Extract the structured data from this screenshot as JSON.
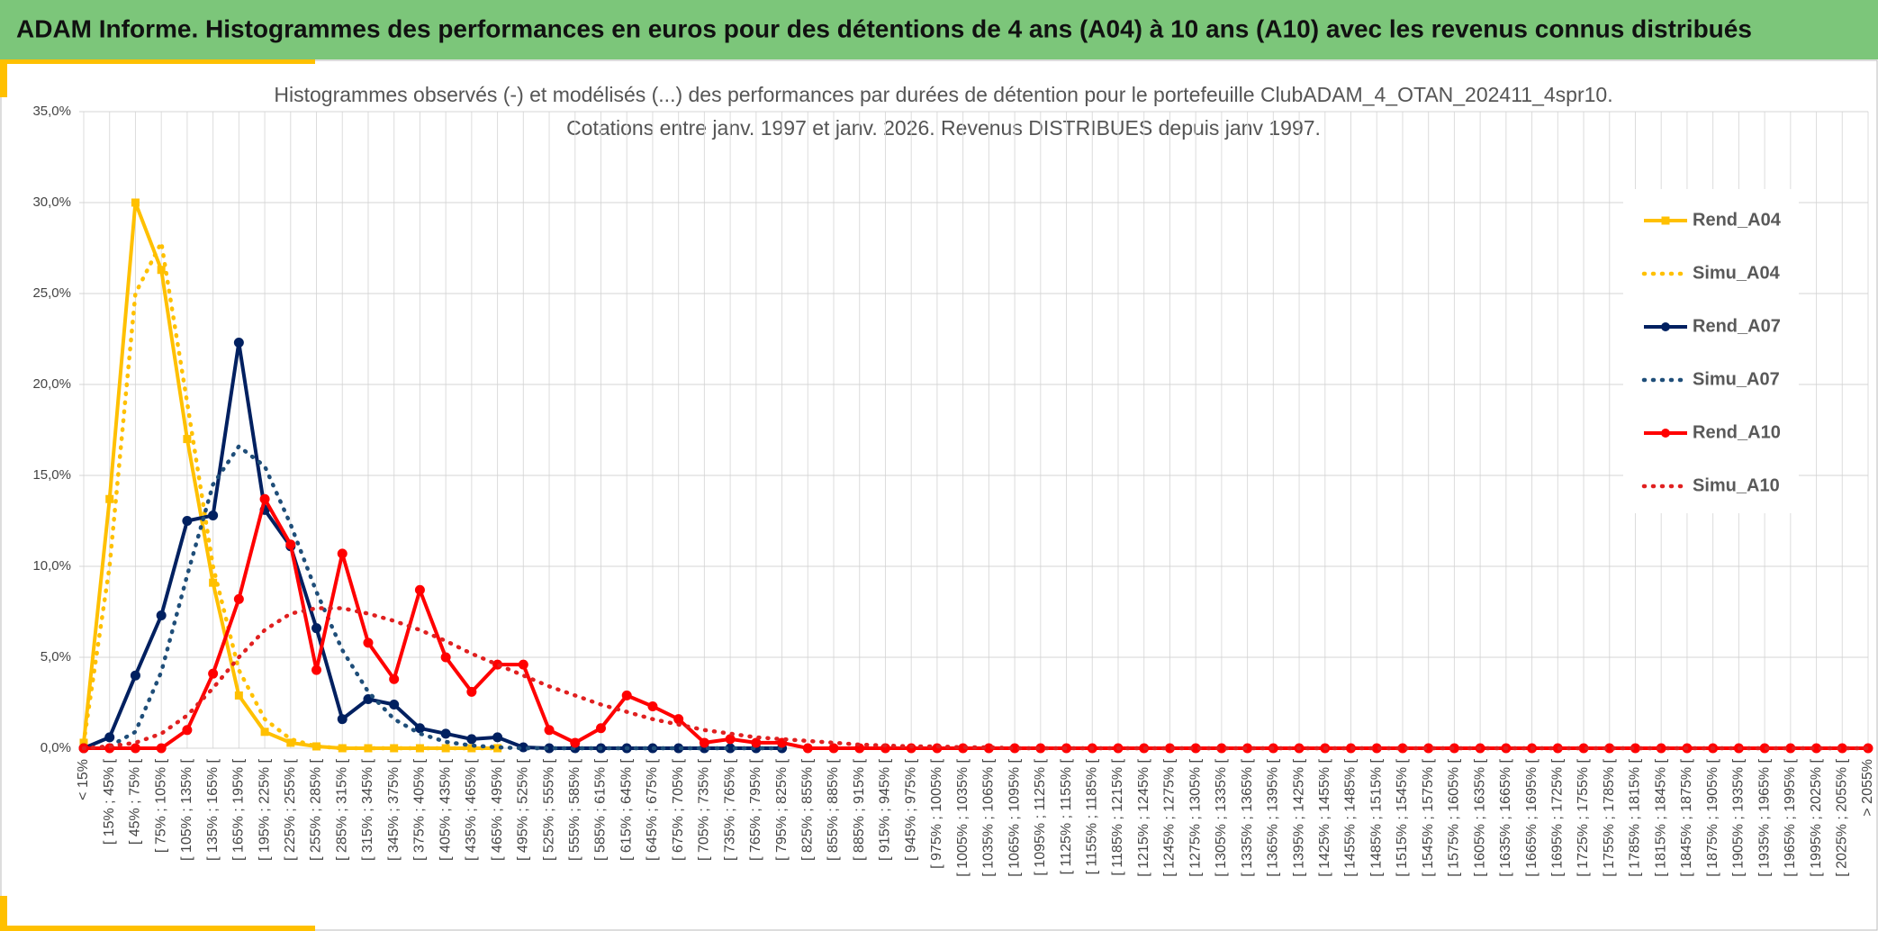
{
  "header": {
    "title": "ADAM Informe. Histogrammes des performances en euros pour des détentions de 4 ans (A04) à 10 ans (A10) avec les revenus connus distribués"
  },
  "chart_data": {
    "type": "line",
    "title": [
      "Histogrammes observés (-) et modélisés (...) des performances par durées de détention pour le portefeuille ClubADAM_4_OTAN_202411_4spr10.",
      "Cotations entre janv. 1997 et janv. 2026. Revenus DISTRIBUES depuis janv 1997."
    ],
    "categories": [
      "< 15%",
      "[ 15% ; 45% [",
      "[ 45% ; 75% [",
      "[ 75% ; 105% [",
      "[ 105% ; 135% [",
      "[ 135% ; 165% [",
      "[ 165% ; 195% [",
      "[ 195% ; 225% [",
      "[ 225% ; 255% [",
      "[ 255% ; 285% [",
      "[ 285% ; 315% [",
      "[ 315% ; 345% [",
      "[ 345% ; 375% [",
      "[ 375% ; 405% [",
      "[ 405% ; 435% [",
      "[ 435% ; 465% [",
      "[ 465% ; 495% [",
      "[ 495% ; 525% [",
      "[ 525% ; 555% [",
      "[ 555% ; 585% [",
      "[ 585% ; 615% [",
      "[ 615% ; 645% [",
      "[ 645% ; 675% [",
      "[ 675% ; 705% [",
      "[ 705% ; 735% [",
      "[ 735% ; 765% [",
      "[ 765% ; 795% [",
      "[ 795% ; 825% [",
      "[ 825% ; 855% [",
      "[ 855% ; 885% [",
      "[ 885% ; 915% [",
      "[ 915% ; 945% [",
      "[ 945% ; 975% [",
      "[ 975% ; 1005% [",
      "[ 1005% ; 1035% [",
      "[ 1035% ; 1065% [",
      "[ 1065% ; 1095% [",
      "[ 1095% ; 1125% [",
      "[ 1125% ; 1155% [",
      "[ 1155% ; 1185% [",
      "[ 1185% ; 1215% [",
      "[ 1215% ; 1245% [",
      "[ 1245% ; 1275% [",
      "[ 1275% ; 1305% [",
      "[ 1305% ; 1335% [",
      "[ 1335% ; 1365% [",
      "[ 1365% ; 1395% [",
      "[ 1395% ; 1425% [",
      "[ 1425% ; 1455% [",
      "[ 1455% ; 1485% [",
      "[ 1485% ; 1515% [",
      "[ 1515% ; 1545% [",
      "[ 1545% ; 1575% [",
      "[ 1575% ; 1605% [",
      "[ 1605% ; 1635% [",
      "[ 1635% ; 1665% [",
      "[ 1665% ; 1695% [",
      "[ 1695% ; 1725% [",
      "[ 1725% ; 1755% [",
      "[ 1755% ; 1785% [",
      "[ 1785% ; 1815% [",
      "[ 1815% ; 1845% [",
      "[ 1845% ; 1875% [",
      "[ 1875% ; 1905% [",
      "[ 1905% ; 1935% [",
      "[ 1935% ; 1965% [",
      "[ 1965% ; 1995% [",
      "[ 1995% ; 2025% [",
      "[ 2025% ; 2055% [",
      "> 2055%"
    ],
    "series": [
      {
        "name": "Rend_A04",
        "color": "#ffc000",
        "style": "solid",
        "marker": "square",
        "values": [
          0.3,
          13.7,
          30.0,
          26.3,
          17.0,
          9.1,
          2.9,
          0.9,
          0.3,
          0.1,
          0,
          0,
          0,
          0,
          0,
          0,
          0,
          null,
          null,
          null,
          null,
          null,
          null,
          null,
          null,
          null,
          null,
          null,
          null,
          null,
          null,
          null,
          null,
          null,
          null,
          null,
          null,
          null,
          null,
          null,
          null,
          null,
          null,
          null,
          null,
          null,
          null,
          null,
          null,
          null,
          null,
          null,
          null,
          null,
          null,
          null,
          null,
          null,
          null,
          null,
          null,
          null,
          null,
          null,
          null,
          null,
          null,
          null,
          null,
          null
        ]
      },
      {
        "name": "Simu_A04",
        "color": "#ffc000",
        "style": "dotted",
        "marker": "none",
        "values": [
          0.3,
          10.0,
          25.0,
          27.8,
          19.0,
          10.0,
          4.3,
          1.6,
          0.5,
          0.1,
          0,
          0,
          0,
          0,
          0,
          0,
          0,
          null,
          null,
          null,
          null,
          null,
          null,
          null,
          null,
          null,
          null,
          null,
          null,
          null,
          null,
          null,
          null,
          null,
          null,
          null,
          null,
          null,
          null,
          null,
          null,
          null,
          null,
          null,
          null,
          null,
          null,
          null,
          null,
          null,
          null,
          null,
          null,
          null,
          null,
          null,
          null,
          null,
          null,
          null,
          null,
          null,
          null,
          null,
          null,
          null,
          null,
          null,
          null,
          null
        ]
      },
      {
        "name": "Rend_A07",
        "color": "#002060",
        "style": "solid",
        "marker": "circle",
        "values": [
          0,
          0.6,
          4.0,
          7.3,
          12.5,
          12.8,
          22.3,
          13.1,
          11.1,
          6.6,
          1.6,
          2.7,
          2.4,
          1.1,
          0.8,
          0.5,
          0.6,
          0.05,
          0,
          0,
          0,
          0,
          0,
          0,
          0,
          0,
          0,
          0,
          null,
          null,
          null,
          null,
          null,
          null,
          null,
          null,
          null,
          null,
          null,
          null,
          null,
          null,
          null,
          null,
          null,
          null,
          null,
          null,
          null,
          null,
          null,
          null,
          null,
          null,
          null,
          null,
          null,
          null,
          null,
          null,
          null,
          null,
          null,
          null,
          null,
          null,
          null,
          null,
          null,
          null
        ]
      },
      {
        "name": "Simu_A07",
        "color": "#1f4e79",
        "style": "dotted",
        "marker": "none",
        "values": [
          0,
          0.1,
          0.9,
          4.2,
          9.5,
          14.5,
          16.6,
          15.5,
          12.3,
          8.6,
          5.4,
          3.1,
          1.6,
          0.8,
          0.35,
          0.15,
          0.05,
          0,
          0,
          0,
          0,
          0,
          0,
          0,
          0,
          0,
          0,
          0,
          null,
          null,
          null,
          null,
          null,
          null,
          null,
          null,
          null,
          null,
          null,
          null,
          null,
          null,
          null,
          null,
          null,
          null,
          null,
          null,
          null,
          null,
          null,
          null,
          null,
          null,
          null,
          null,
          null,
          null,
          null,
          null,
          null,
          null,
          null,
          null,
          null,
          null,
          null,
          null,
          null,
          null
        ]
      },
      {
        "name": "Rend_A10",
        "color": "#ff0000",
        "style": "solid",
        "marker": "circle",
        "values": [
          0,
          0,
          0,
          0,
          1.0,
          4.1,
          8.2,
          13.7,
          11.2,
          4.3,
          10.7,
          5.8,
          3.8,
          8.7,
          5.0,
          3.1,
          4.6,
          4.6,
          1.0,
          0.3,
          1.1,
          2.9,
          2.3,
          1.6,
          0.3,
          0.5,
          0.3,
          0.3,
          0,
          0,
          0,
          0,
          0,
          0,
          0,
          0,
          0,
          0,
          0,
          0,
          0,
          0,
          0,
          0,
          0,
          0,
          0,
          0,
          0,
          0,
          0,
          0,
          0,
          0,
          0,
          0,
          0,
          0,
          0,
          0,
          0,
          0,
          0,
          0,
          0,
          0,
          0,
          0,
          0,
          0
        ]
      },
      {
        "name": "Simu_A10",
        "color": "#e02020",
        "style": "dotted",
        "marker": "none",
        "values": [
          0,
          0.1,
          0.3,
          0.8,
          1.8,
          3.3,
          5.0,
          6.5,
          7.4,
          7.7,
          7.7,
          7.4,
          7.0,
          6.5,
          5.9,
          5.2,
          4.6,
          4.0,
          3.4,
          2.9,
          2.4,
          2.0,
          1.6,
          1.3,
          1.0,
          0.8,
          0.6,
          0.5,
          0.4,
          0.3,
          0.2,
          0.15,
          0.1,
          0.1,
          0.05,
          0.05,
          0,
          0,
          0,
          0,
          0,
          0,
          0,
          0,
          0,
          0,
          0,
          0,
          0,
          0,
          0,
          0,
          0,
          0,
          0,
          0,
          0,
          0,
          0,
          0,
          0,
          0,
          0,
          0,
          0,
          0,
          0,
          0,
          0,
          0
        ]
      }
    ],
    "ylim": [
      0,
      35
    ],
    "yticks": [
      {
        "value": 0,
        "label": "0,0%"
      },
      {
        "value": 5,
        "label": "5,0%"
      },
      {
        "value": 10,
        "label": "10,0%"
      },
      {
        "value": 15,
        "label": "15,0%"
      },
      {
        "value": 20,
        "label": "20,0%"
      },
      {
        "value": 25,
        "label": "25,0%"
      },
      {
        "value": 30,
        "label": "30,0%"
      },
      {
        "value": 35,
        "label": "35,0%"
      }
    ],
    "grid": true,
    "legend": "right"
  }
}
